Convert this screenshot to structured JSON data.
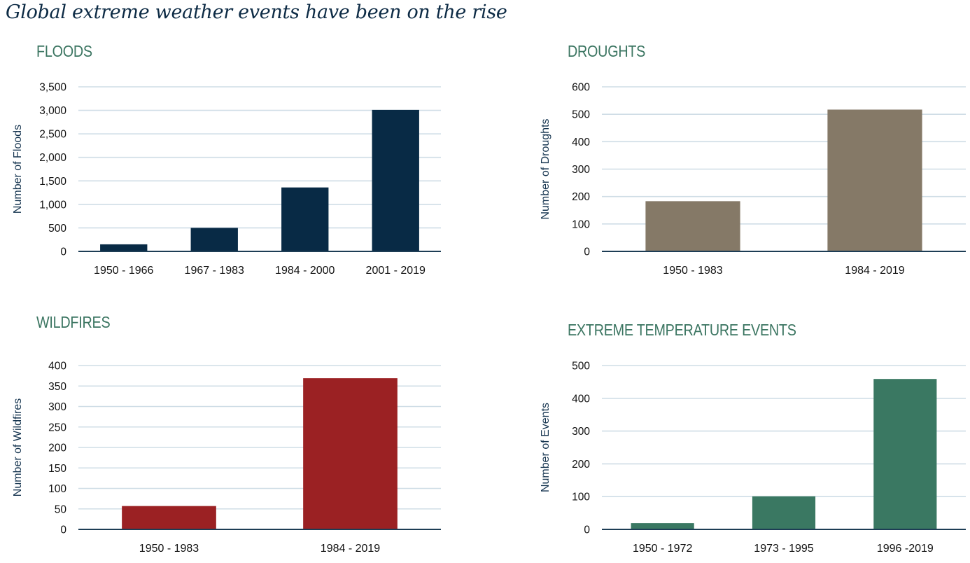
{
  "page": {
    "title": "Global extreme weather events have been on the rise"
  },
  "chart_data": [
    {
      "id": "floods",
      "type": "bar",
      "title": "FLOODS",
      "xlabel": "",
      "ylabel": "Number of Floods",
      "categories": [
        "1950 - 1966",
        "1967 - 1983",
        "1984 - 2000",
        "2001 - 2019"
      ],
      "values": [
        150,
        500,
        1360,
        3010
      ],
      "ylim": [
        0,
        3500
      ],
      "yticks": [
        0,
        500,
        1000,
        1500,
        2000,
        2500,
        3000,
        3500
      ],
      "ytick_labels": [
        "0",
        "500",
        "1,000",
        "1,500",
        "2,000",
        "2,500",
        "3,000",
        "3,500"
      ],
      "color": "#082a45",
      "grid": true,
      "legend": "none"
    },
    {
      "id": "droughts",
      "type": "bar",
      "title": "DROUGHTS",
      "xlabel": "",
      "ylabel": "Number of Droughts",
      "categories": [
        "1950 - 1983",
        "1984 - 2019"
      ],
      "values": [
        183,
        517
      ],
      "ylim": [
        0,
        600
      ],
      "yticks": [
        0,
        100,
        200,
        300,
        400,
        500,
        600
      ],
      "ytick_labels": [
        "0",
        "100",
        "200",
        "300",
        "400",
        "500",
        "600"
      ],
      "color": "#857967",
      "grid": true,
      "legend": "none"
    },
    {
      "id": "wildfires",
      "type": "bar",
      "title": "WILDFIRES",
      "xlabel": "",
      "ylabel": "Number of Wildfires",
      "categories": [
        "1950 - 1983",
        "1984 - 2019"
      ],
      "values": [
        57,
        369
      ],
      "ylim": [
        0,
        400
      ],
      "yticks": [
        0,
        50,
        100,
        150,
        200,
        250,
        300,
        350,
        400
      ],
      "ytick_labels": [
        "0",
        "50",
        "100",
        "150",
        "200",
        "250",
        "300",
        "350",
        "400"
      ],
      "color": "#9b2123",
      "grid": true,
      "legend": "none"
    },
    {
      "id": "extreme-temperature",
      "type": "bar",
      "title": "EXTREME TEMPERATURE EVENTS",
      "xlabel": "",
      "ylabel": "Number of Events",
      "categories": [
        "1950 - 1972",
        "1973 - 1995",
        "1996 -2019"
      ],
      "values": [
        19,
        101,
        459
      ],
      "ylim": [
        0,
        500
      ],
      "yticks": [
        0,
        100,
        200,
        300,
        400,
        500
      ],
      "ytick_labels": [
        "0",
        "100",
        "200",
        "300",
        "400",
        "500"
      ],
      "color": "#3a7862",
      "grid": true,
      "legend": "none"
    }
  ],
  "style": {
    "gridline_color": "#cfdde6",
    "baseline_color": "#1d3d55"
  }
}
